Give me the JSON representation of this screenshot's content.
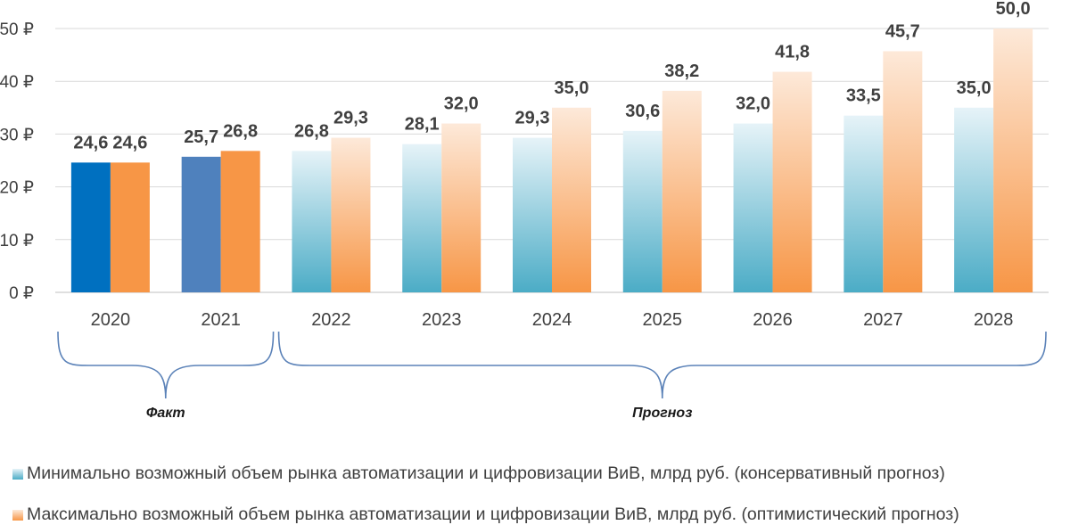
{
  "chart_data": {
    "type": "bar",
    "categories": [
      "2020",
      "2021",
      "2022",
      "2023",
      "2024",
      "2025",
      "2026",
      "2027",
      "2028"
    ],
    "y_ticks": [
      "0 ₽",
      "10 ₽",
      "20 ₽",
      "30 ₽",
      "40 ₽",
      "50 ₽"
    ],
    "ylim": [
      0,
      50
    ],
    "grid": true,
    "legend_position": "bottom",
    "series": [
      {
        "name": "Минимально возможный объем рынка автоматизации и цифровизации ВиВ, млрд руб. (консервативный прогноз)",
        "values": [
          24.6,
          25.7,
          26.8,
          28.1,
          29.3,
          30.6,
          32.0,
          33.5,
          35.0
        ],
        "labels": [
          "24,6",
          "25,7",
          "26,8",
          "28,1",
          "29,3",
          "30,6",
          "32,0",
          "33,5",
          "35,0"
        ],
        "color": "#4bacc6",
        "fact_colors": [
          "#0070c0",
          "#4f81bd"
        ]
      },
      {
        "name": "Максимально возможный объем рынка автоматизации и цифровизации ВиВ, млрд руб. (оптимистический прогноз)",
        "values": [
          24.6,
          26.8,
          29.3,
          32.0,
          35.0,
          38.2,
          41.8,
          45.7,
          50.0
        ],
        "labels": [
          "24,6",
          "26,8",
          "29,3",
          "32,0",
          "35,0",
          "38,2",
          "41,8",
          "45,7",
          "50,0"
        ],
        "color": "#f79646"
      }
    ],
    "annotations": [
      {
        "text": "Факт",
        "from_category": "2020",
        "to_category": "2021"
      },
      {
        "text": "Прогноз",
        "from_category": "2022",
        "to_category": "2028"
      }
    ]
  }
}
